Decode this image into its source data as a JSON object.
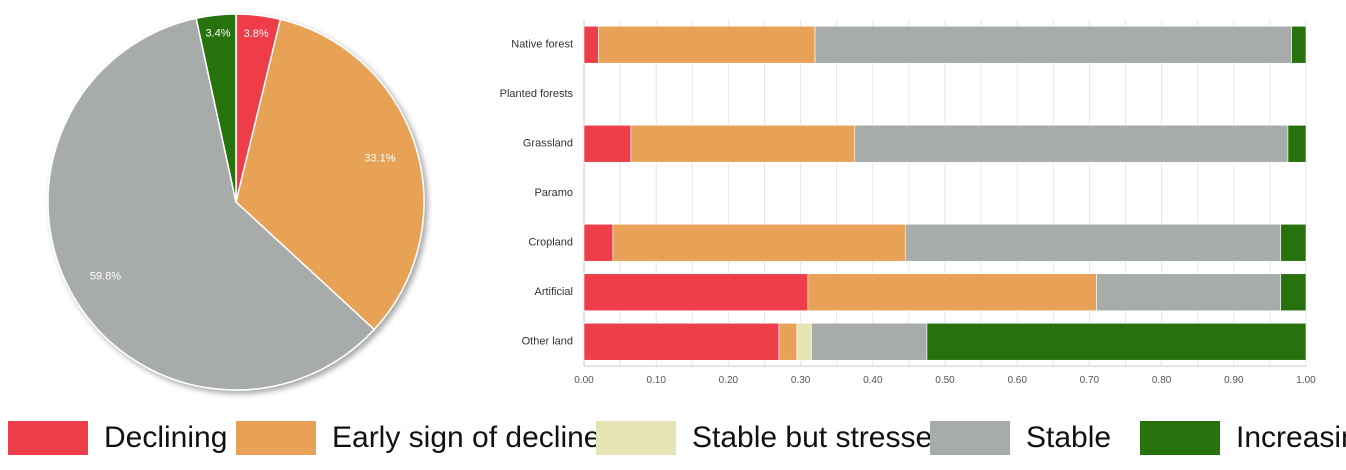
{
  "chart_data": [
    {
      "type": "pie",
      "slices": [
        {
          "label": "Declining",
          "value": 3.8,
          "text": "3.8%"
        },
        {
          "label": "Early sign of decline",
          "value": 33.1,
          "text": "33.1%"
        },
        {
          "label": "Stable",
          "value": 59.8,
          "text": "59.8%"
        },
        {
          "label": "Increasing",
          "value": 3.4,
          "text": "3.4%"
        }
      ]
    },
    {
      "type": "bar",
      "orientation": "horizontal",
      "stacked": true,
      "categories": [
        "Native forest",
        "Planted forests",
        "Grassland",
        "Paramo",
        "Cropland",
        "Artificial",
        "Other land"
      ],
      "series": [
        {
          "name": "Declining",
          "values": [
            0.02,
            0,
            0.065,
            0,
            0.04,
            0.31,
            0.27
          ]
        },
        {
          "name": "Early sign of decline",
          "values": [
            0.3,
            0,
            0.31,
            0,
            0.405,
            0.4,
            0.025
          ]
        },
        {
          "name": "Stable but stressed",
          "values": [
            0,
            0,
            0,
            0,
            0,
            0,
            0.02
          ]
        },
        {
          "name": "Stable",
          "values": [
            0.66,
            0,
            0.6,
            0,
            0.52,
            0.255,
            0.16
          ]
        },
        {
          "name": "Increasing",
          "values": [
            0.02,
            0,
            0.025,
            0,
            0.035,
            0.035,
            0.525
          ]
        }
      ],
      "xlim": [
        0,
        1
      ],
      "xticks": [
        "0.00",
        "0.10",
        "0.20",
        "0.30",
        "0.40",
        "0.50",
        "0.60",
        "0.70",
        "0.80",
        "0.90",
        "1.00"
      ],
      "grid": true
    }
  ],
  "legend": {
    "items": [
      {
        "label": "Declining",
        "color": "#ee3e4a"
      },
      {
        "label": "Early sign of decline",
        "color": "#e8a257"
      },
      {
        "label": "Stable but stressed",
        "color": "#e6e3b4"
      },
      {
        "label": "Stable",
        "color": "#a7acab"
      },
      {
        "label": "Increasing",
        "color": "#27720d"
      }
    ]
  }
}
